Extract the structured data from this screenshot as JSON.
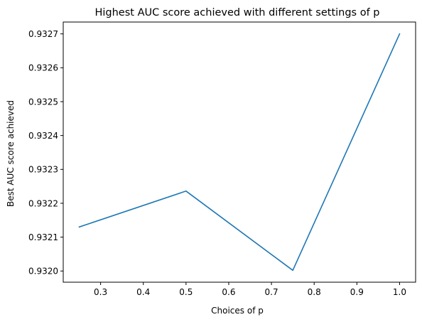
{
  "chart_data": {
    "type": "line",
    "title": "Highest AUC score achieved with different settings of p",
    "xlabel": "Choices of p",
    "ylabel": "Best AUC score achieved",
    "x": [
      0.25,
      0.5,
      0.75,
      1.0
    ],
    "series": [
      {
        "values": [
          0.93213,
          0.932236,
          0.932002,
          0.9327
        ],
        "color": "#1f77b4"
      }
    ],
    "xlim": [
      0.2125,
      1.0375
    ],
    "ylim": [
      0.931967,
      0.932735
    ],
    "xticks": [
      0.3,
      0.4,
      0.5,
      0.6,
      0.7,
      0.8,
      0.9,
      1.0
    ],
    "xtick_labels": [
      "0.3",
      "0.4",
      "0.5",
      "0.6",
      "0.7",
      "0.8",
      "0.9",
      "1.0"
    ],
    "yticks": [
      0.932,
      0.9321,
      0.9322,
      0.9323,
      0.9324,
      0.9325,
      0.9326,
      0.9327
    ],
    "ytick_labels": [
      "0.9320",
      "0.9321",
      "0.9322",
      "0.9323",
      "0.9324",
      "0.9325",
      "0.9326",
      "0.9327"
    ],
    "grid": false,
    "legend": "none"
  }
}
